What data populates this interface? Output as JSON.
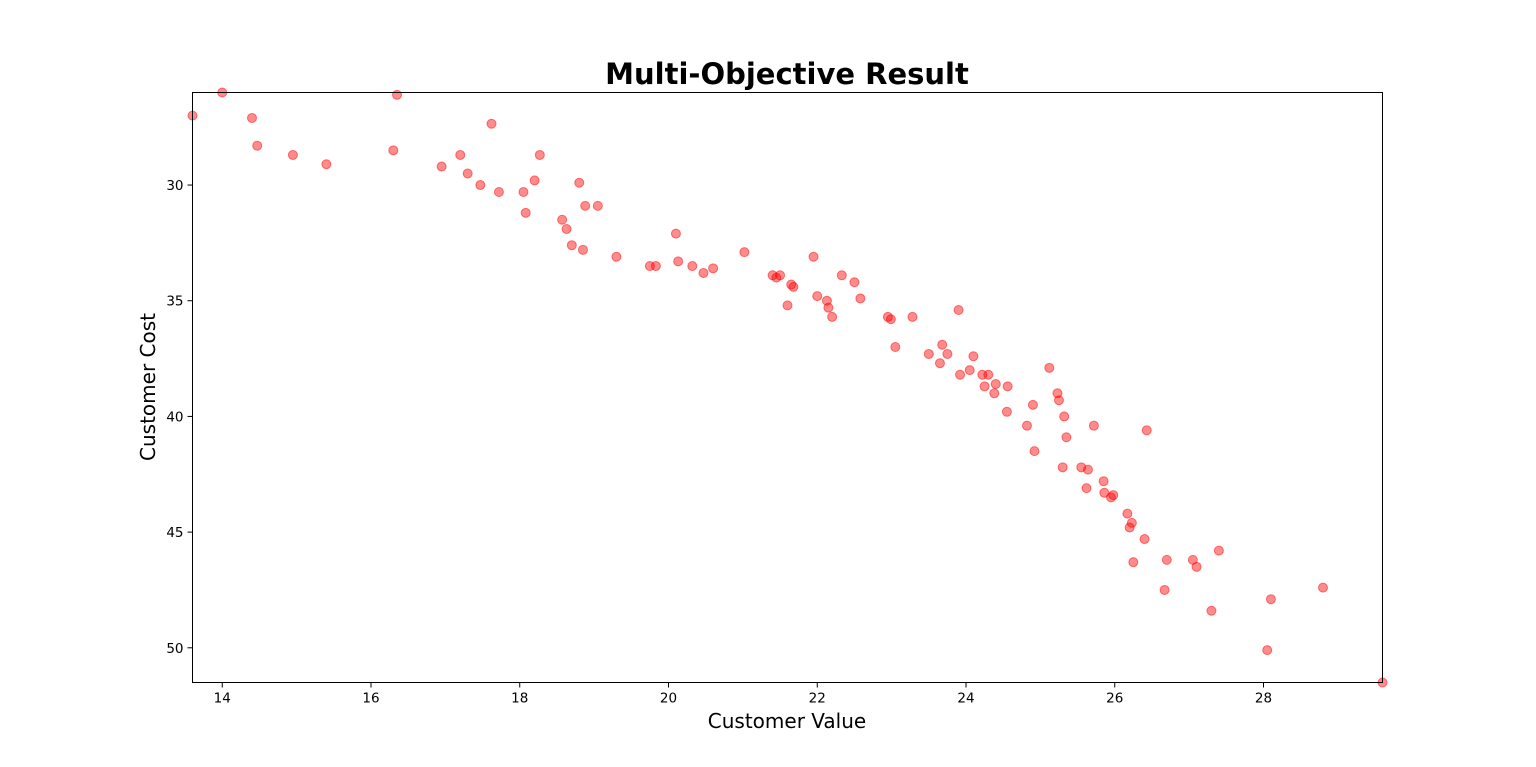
{
  "chart_data": {
    "type": "scatter",
    "title": "Multi-Objective Result",
    "xlabel": "Customer Value",
    "ylabel": "Customer Cost",
    "xlim": [
      13.6,
      29.6
    ],
    "ylim": [
      51.5,
      26
    ],
    "y_inverted": true,
    "grid": false,
    "xticks": [
      14,
      16,
      18,
      20,
      22,
      24,
      26,
      28
    ],
    "yticks": [
      30,
      35,
      40,
      45,
      50
    ],
    "point_color": "#ff0000",
    "point_alpha": 0.45,
    "points": [
      [
        13.6,
        27.0
      ],
      [
        14.0,
        26.0
      ],
      [
        14.4,
        27.1
      ],
      [
        14.47,
        28.3
      ],
      [
        14.95,
        28.7
      ],
      [
        15.4,
        29.1
      ],
      [
        16.3,
        28.5
      ],
      [
        16.35,
        26.1
      ],
      [
        16.95,
        29.2
      ],
      [
        17.2,
        28.7
      ],
      [
        17.3,
        29.5
      ],
      [
        17.47,
        30.0
      ],
      [
        17.62,
        27.35
      ],
      [
        17.72,
        30.3
      ],
      [
        18.05,
        30.3
      ],
      [
        18.08,
        31.2
      ],
      [
        18.2,
        29.8
      ],
      [
        18.27,
        28.7
      ],
      [
        18.57,
        31.5
      ],
      [
        18.63,
        31.9
      ],
      [
        18.7,
        32.6
      ],
      [
        18.8,
        29.9
      ],
      [
        18.85,
        32.8
      ],
      [
        18.88,
        30.9
      ],
      [
        19.05,
        30.9
      ],
      [
        19.3,
        33.1
      ],
      [
        19.75,
        33.5
      ],
      [
        19.83,
        33.5
      ],
      [
        20.1,
        32.1
      ],
      [
        20.13,
        33.3
      ],
      [
        20.32,
        33.5
      ],
      [
        20.47,
        33.8
      ],
      [
        20.6,
        33.6
      ],
      [
        21.02,
        32.9
      ],
      [
        21.4,
        33.9
      ],
      [
        21.45,
        34.0
      ],
      [
        21.5,
        33.9
      ],
      [
        21.6,
        35.2
      ],
      [
        21.65,
        34.3
      ],
      [
        21.68,
        34.4
      ],
      [
        21.95,
        33.1
      ],
      [
        22.0,
        34.8
      ],
      [
        22.13,
        35.0
      ],
      [
        22.15,
        35.3
      ],
      [
        22.2,
        35.7
      ],
      [
        22.33,
        33.9
      ],
      [
        22.5,
        34.2
      ],
      [
        22.58,
        34.9
      ],
      [
        22.95,
        35.7
      ],
      [
        22.99,
        35.8
      ],
      [
        23.05,
        37.0
      ],
      [
        23.28,
        35.7
      ],
      [
        23.5,
        37.3
      ],
      [
        23.65,
        37.7
      ],
      [
        23.68,
        36.9
      ],
      [
        23.75,
        37.3
      ],
      [
        23.9,
        35.4
      ],
      [
        23.92,
        38.2
      ],
      [
        24.05,
        38.0
      ],
      [
        24.1,
        37.4
      ],
      [
        24.22,
        38.2
      ],
      [
        24.25,
        38.7
      ],
      [
        24.3,
        38.2
      ],
      [
        24.38,
        39.0
      ],
      [
        24.4,
        38.6
      ],
      [
        24.55,
        39.8
      ],
      [
        24.56,
        38.7
      ],
      [
        24.82,
        40.4
      ],
      [
        24.9,
        39.5
      ],
      [
        24.92,
        41.5
      ],
      [
        25.12,
        37.9
      ],
      [
        25.23,
        39.0
      ],
      [
        25.25,
        39.3
      ],
      [
        25.3,
        42.2
      ],
      [
        25.32,
        40.0
      ],
      [
        25.35,
        40.9
      ],
      [
        25.55,
        42.2
      ],
      [
        25.62,
        43.1
      ],
      [
        25.64,
        42.3
      ],
      [
        25.72,
        40.4
      ],
      [
        25.85,
        42.8
      ],
      [
        25.86,
        43.3
      ],
      [
        25.95,
        43.5
      ],
      [
        25.98,
        43.4
      ],
      [
        26.17,
        44.2
      ],
      [
        26.2,
        44.8
      ],
      [
        26.23,
        44.6
      ],
      [
        26.25,
        46.3
      ],
      [
        26.4,
        45.3
      ],
      [
        26.43,
        40.6
      ],
      [
        26.67,
        47.5
      ],
      [
        26.7,
        46.2
      ],
      [
        27.05,
        46.2
      ],
      [
        27.1,
        46.5
      ],
      [
        27.3,
        48.4
      ],
      [
        27.4,
        45.8
      ],
      [
        28.05,
        50.1
      ],
      [
        28.1,
        47.9
      ],
      [
        28.8,
        47.4
      ],
      [
        29.6,
        51.5
      ]
    ]
  }
}
